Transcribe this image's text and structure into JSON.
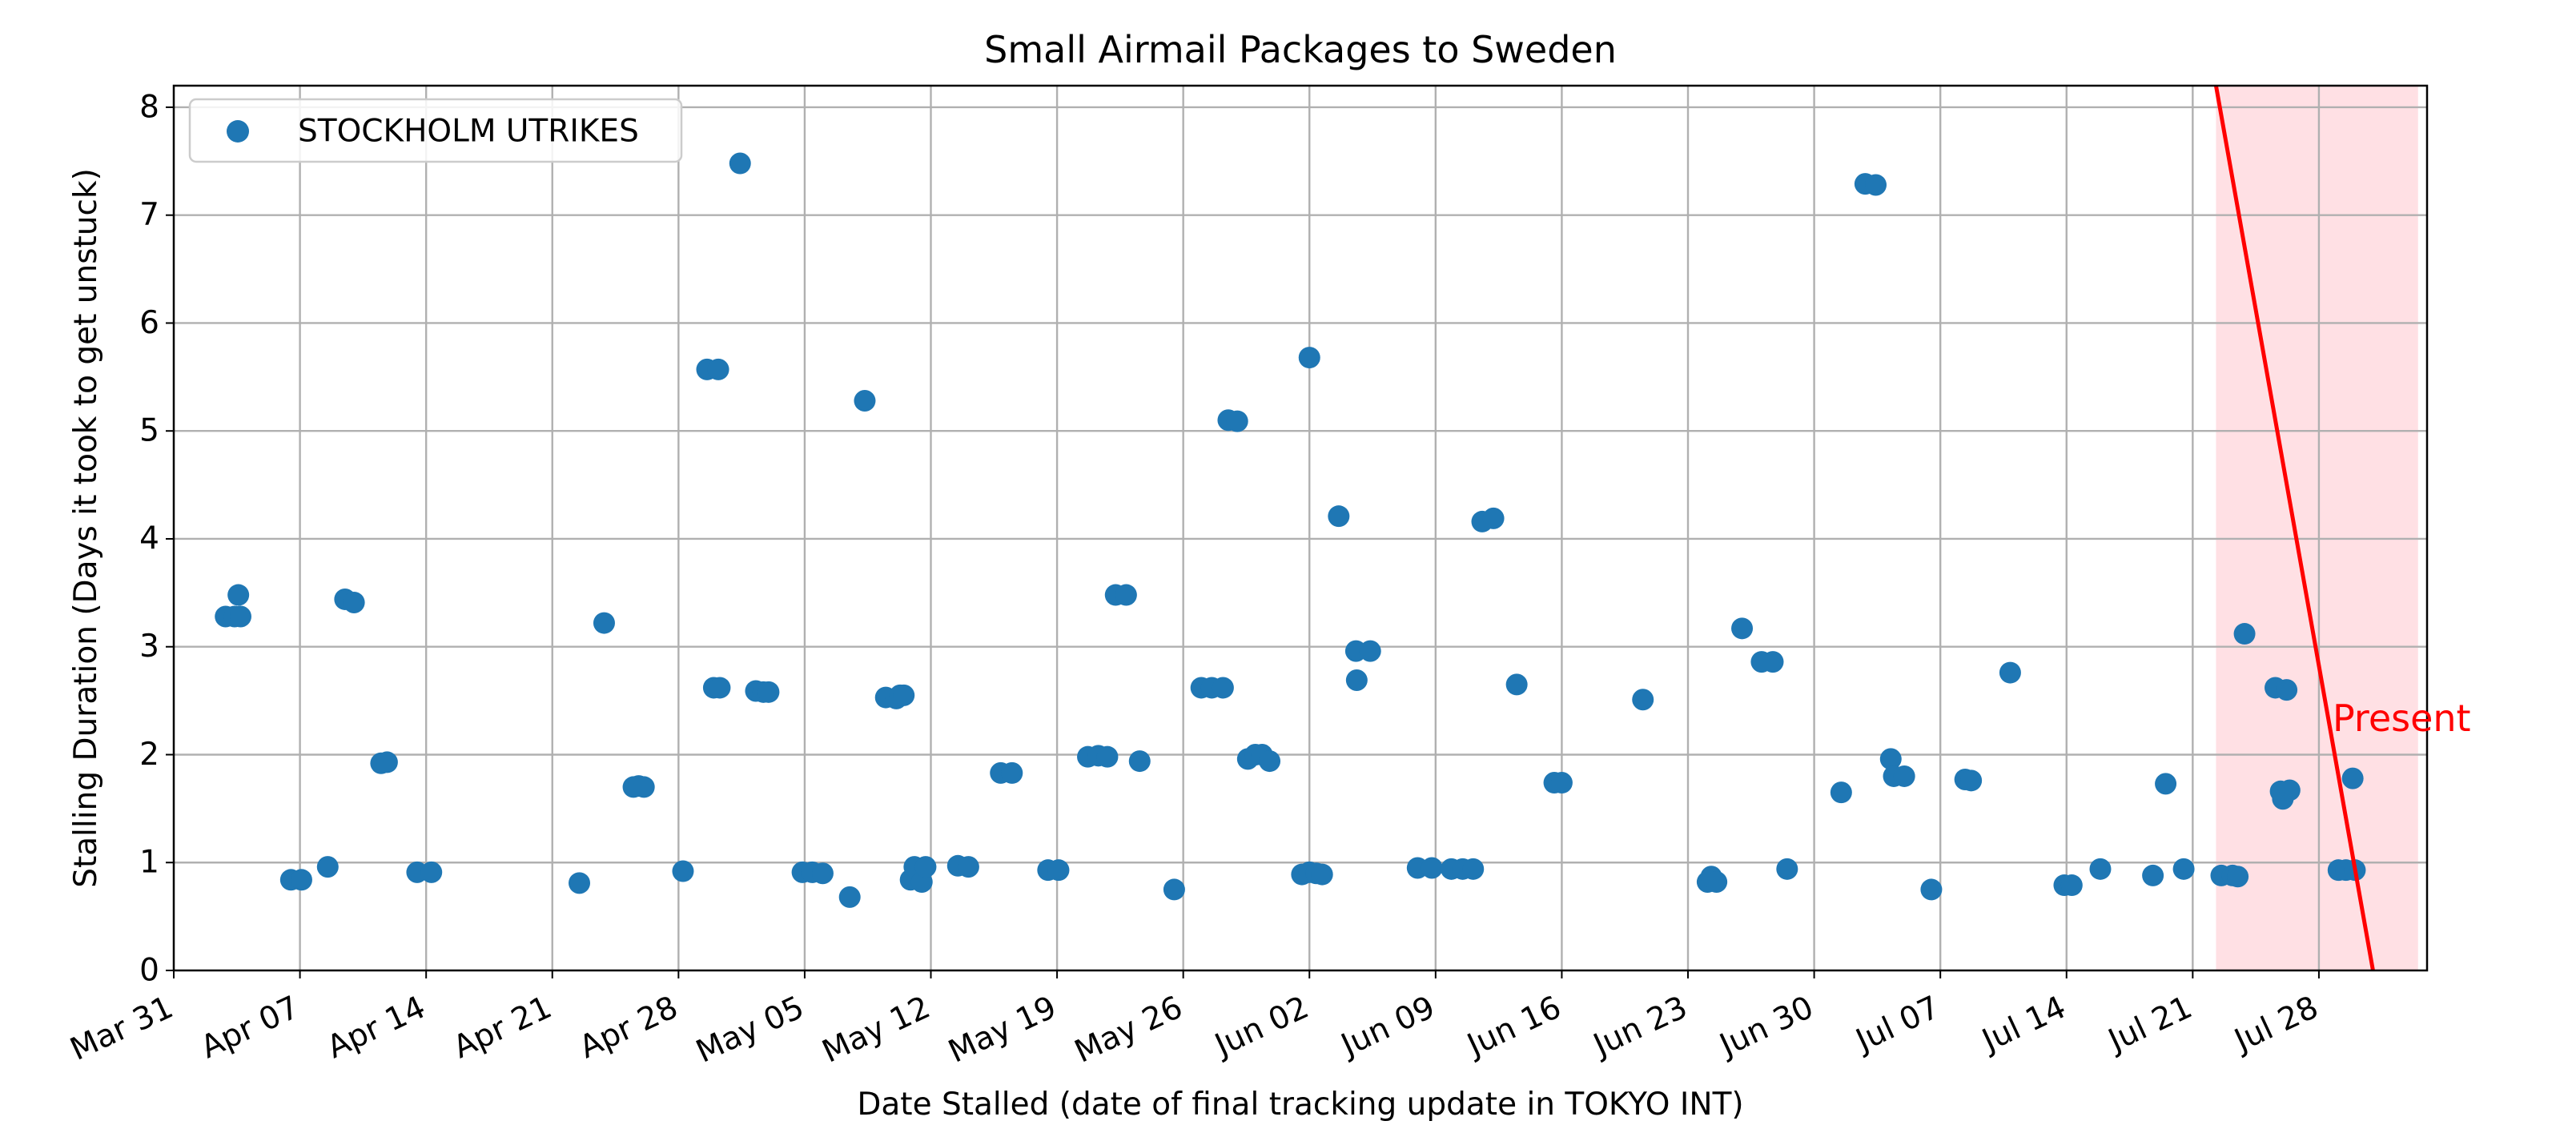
{
  "chart_data": {
    "type": "scatter",
    "title": "Small Airmail Packages to Sweden",
    "xlabel": "Date Stalled (date of final tracking update in TOKYO INT)",
    "ylabel": "Stalling Duration (Days it took to get unstuck)",
    "xlim": [
      "2024-03-31",
      "2024-08-03"
    ],
    "ylim": [
      0,
      8.2
    ],
    "x_ticks": [
      "Mar 31",
      "Apr 07",
      "Apr 14",
      "Apr 21",
      "Apr 28",
      "May 05",
      "May 12",
      "May 19",
      "May 26",
      "Jun 02",
      "Jun 09",
      "Jun 16",
      "Jun 23",
      "Jun 30",
      "Jul 07",
      "Jul 14",
      "Jul 21",
      "Jul 28"
    ],
    "y_ticks": [
      "0",
      "1",
      "2",
      "3",
      "4",
      "5",
      "6",
      "7",
      "8"
    ],
    "grid": true,
    "legend_position": "top-left",
    "series": [
      {
        "name": "STOCKHOLM UTRIKES",
        "color": "#1f77b4",
        "points": [
          [
            "2024-04-02T21:00",
            3.28
          ],
          [
            "2024-04-03T09:00",
            3.28
          ],
          [
            "2024-04-03T14:00",
            3.48
          ],
          [
            "2024-04-03T17:00",
            3.28
          ],
          [
            "2024-04-06T12:00",
            0.84
          ],
          [
            "2024-04-07T02:00",
            0.84
          ],
          [
            "2024-04-08T13:00",
            0.96
          ],
          [
            "2024-04-09T12:00",
            3.44
          ],
          [
            "2024-04-10T00:00",
            3.41
          ],
          [
            "2024-04-11T12:00",
            1.92
          ],
          [
            "2024-04-11T20:00",
            1.93
          ],
          [
            "2024-04-13T12:00",
            0.91
          ],
          [
            "2024-04-14T07:00",
            0.91
          ],
          [
            "2024-04-22T12:00",
            0.81
          ],
          [
            "2024-04-23T21:00",
            3.22
          ],
          [
            "2024-04-25T12:00",
            1.7
          ],
          [
            "2024-04-25T19:00",
            1.71
          ],
          [
            "2024-04-26T02:00",
            1.7
          ],
          [
            "2024-04-28T06:00",
            0.92
          ],
          [
            "2024-04-29T14:00",
            5.57
          ],
          [
            "2024-04-30T05:00",
            5.57
          ],
          [
            "2024-04-29T23:00",
            2.62
          ],
          [
            "2024-04-30T07:00",
            2.62
          ],
          [
            "2024-05-01T10:00",
            7.48
          ],
          [
            "2024-05-02T07:00",
            2.59
          ],
          [
            "2024-05-02T17:00",
            2.58
          ],
          [
            "2024-05-03T00:00",
            2.58
          ],
          [
            "2024-05-04T21:00",
            0.91
          ],
          [
            "2024-05-05T10:00",
            0.91
          ],
          [
            "2024-05-06T00:00",
            0.9
          ],
          [
            "2024-05-07T12:00",
            0.68
          ],
          [
            "2024-05-08T08:00",
            5.28
          ],
          [
            "2024-05-09T12:00",
            2.53
          ],
          [
            "2024-05-10T02:00",
            2.52
          ],
          [
            "2024-05-10T07:00",
            2.55
          ],
          [
            "2024-05-10T12:00",
            2.55
          ],
          [
            "2024-05-10T21:00",
            0.84
          ],
          [
            "2024-05-11T02:00",
            0.96
          ],
          [
            "2024-05-11T12:00",
            0.82
          ],
          [
            "2024-05-11T17:00",
            0.96
          ],
          [
            "2024-05-13T12:00",
            0.97
          ],
          [
            "2024-05-14T02:00",
            0.96
          ],
          [
            "2024-05-15T21:00",
            1.83
          ],
          [
            "2024-05-16T12:00",
            1.83
          ],
          [
            "2024-05-18T12:00",
            0.93
          ],
          [
            "2024-05-19T02:00",
            0.93
          ],
          [
            "2024-05-20T17:00",
            1.98
          ],
          [
            "2024-05-21T07:00",
            1.99
          ],
          [
            "2024-05-21T19:00",
            1.98
          ],
          [
            "2024-05-22T06:00",
            3.48
          ],
          [
            "2024-05-22T20:00",
            3.48
          ],
          [
            "2024-05-23T14:00",
            1.94
          ],
          [
            "2024-05-25T12:00",
            0.75
          ],
          [
            "2024-05-27T00:00",
            2.62
          ],
          [
            "2024-05-27T14:00",
            2.62
          ],
          [
            "2024-05-28T05:00",
            2.62
          ],
          [
            "2024-05-28T12:00",
            5.1
          ],
          [
            "2024-05-29T00:00",
            5.09
          ],
          [
            "2024-05-29T14:00",
            1.96
          ],
          [
            "2024-05-30T00:00",
            2.0
          ],
          [
            "2024-05-30T09:00",
            2.0
          ],
          [
            "2024-05-30T19:00",
            1.94
          ],
          [
            "2024-06-01T14:00",
            0.89
          ],
          [
            "2024-06-02T00:00",
            0.91
          ],
          [
            "2024-06-02T09:00",
            0.9
          ],
          [
            "2024-06-02T17:00",
            0.89
          ],
          [
            "2024-06-02T00:00",
            5.68
          ],
          [
            "2024-06-03T15:00",
            4.21
          ],
          [
            "2024-06-04T14:00",
            2.96
          ],
          [
            "2024-06-04T15:00",
            2.69
          ],
          [
            "2024-06-05T09:00",
            2.96
          ],
          [
            "2024-06-08T00:00",
            0.95
          ],
          [
            "2024-06-08T19:00",
            0.95
          ],
          [
            "2024-06-09T21:00",
            0.94
          ],
          [
            "2024-06-10T12:00",
            0.94
          ],
          [
            "2024-06-11T02:00",
            0.94
          ],
          [
            "2024-06-11T14:00",
            4.16
          ],
          [
            "2024-06-12T05:00",
            4.19
          ],
          [
            "2024-06-13T12:00",
            2.65
          ],
          [
            "2024-06-15T14:00",
            1.74
          ],
          [
            "2024-06-16T00:00",
            1.74
          ],
          [
            "2024-06-20T12:00",
            2.51
          ],
          [
            "2024-06-24T02:00",
            0.82
          ],
          [
            "2024-06-24T07:00",
            0.87
          ],
          [
            "2024-06-24T14:00",
            0.82
          ],
          [
            "2024-06-26T00:00",
            3.17
          ],
          [
            "2024-06-27T02:00",
            2.86
          ],
          [
            "2024-06-27T17:00",
            2.86
          ],
          [
            "2024-06-28T12:00",
            0.94
          ],
          [
            "2024-07-01T12:00",
            1.65
          ],
          [
            "2024-07-02T20:00",
            7.29
          ],
          [
            "2024-07-03T10:00",
            7.28
          ],
          [
            "2024-07-04T06:00",
            1.96
          ],
          [
            "2024-07-04T10:00",
            1.8
          ],
          [
            "2024-07-05T00:00",
            1.8
          ],
          [
            "2024-07-06T12:00",
            0.75
          ],
          [
            "2024-07-08T09:00",
            1.77
          ],
          [
            "2024-07-08T17:00",
            1.76
          ],
          [
            "2024-07-10T21:00",
            2.76
          ],
          [
            "2024-07-13T21:00",
            0.79
          ],
          [
            "2024-07-14T07:00",
            0.79
          ],
          [
            "2024-07-15T21:00",
            0.94
          ],
          [
            "2024-07-18T19:00",
            0.88
          ],
          [
            "2024-07-19T12:00",
            1.73
          ],
          [
            "2024-07-20T12:00",
            0.94
          ],
          [
            "2024-07-22T14:00",
            0.88
          ],
          [
            "2024-07-23T05:00",
            0.88
          ],
          [
            "2024-07-23T12:00",
            0.87
          ],
          [
            "2024-07-23T21:00",
            3.12
          ],
          [
            "2024-07-25T14:00",
            2.62
          ],
          [
            "2024-07-26T05:00",
            2.6
          ],
          [
            "2024-07-25T21:00",
            1.66
          ],
          [
            "2024-07-26T00:00",
            1.59
          ],
          [
            "2024-07-26T09:00",
            1.67
          ],
          [
            "2024-07-29T02:00",
            0.93
          ],
          [
            "2024-07-29T12:00",
            0.93
          ],
          [
            "2024-07-30T00:00",
            0.93
          ],
          [
            "2024-07-29T21:00",
            1.78
          ]
        ]
      }
    ],
    "present_marker": {
      "label": "Present",
      "color": "#ff0000",
      "shade_color": "#ffe0e4",
      "line": [
        [
          "2024-07-22T07:00",
          8.2
        ],
        [
          "2024-07-31T00:00",
          0
        ]
      ],
      "shaded_range": [
        "2024-07-22T07:00",
        "2024-08-02T12:00"
      ]
    }
  }
}
